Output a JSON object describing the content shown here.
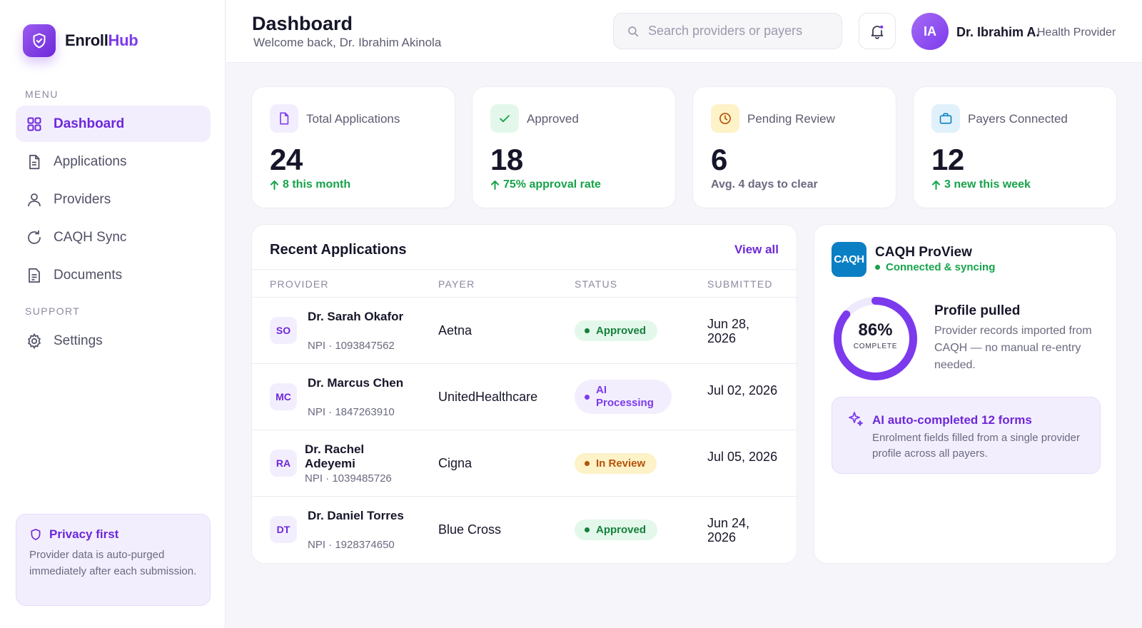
{
  "brand": {
    "name_main": "Enroll",
    "name_accent": "Hub"
  },
  "sidebar": {
    "menu_heading": "MENU",
    "support_heading": "SUPPORT",
    "items": [
      {
        "label": "Dashboard",
        "icon": "grid-icon",
        "active": true
      },
      {
        "label": "Applications",
        "icon": "document-icon"
      },
      {
        "label": "Providers",
        "icon": "user-icon"
      },
      {
        "label": "CAQH Sync",
        "icon": "sync-icon"
      },
      {
        "label": "Documents",
        "icon": "file-text-icon"
      },
      {
        "label": "Settings",
        "icon": "gear-icon"
      }
    ],
    "privacy": {
      "title": "Privacy first",
      "text": "Provider data is auto-purged immediately after each submission."
    }
  },
  "header": {
    "title": "Dashboard",
    "subtitle": "Welcome back, Dr. Ibrahim Akinola",
    "search_placeholder": "Search providers or payers",
    "user": {
      "initials": "IA",
      "name": "Dr. Ibrahim A.",
      "role": "Health Provider"
    }
  },
  "stats": [
    {
      "label": "Total Applications",
      "value": "24",
      "note": "8 this month",
      "trend": "up",
      "icon": "document-icon"
    },
    {
      "label": "Approved",
      "value": "18",
      "note": "75% approval rate",
      "trend": "up",
      "icon": "check-icon"
    },
    {
      "label": "Pending Review",
      "value": "6",
      "note": "Avg. 4 days to clear",
      "trend": "none",
      "icon": "clock-icon"
    },
    {
      "label": "Payers Connected",
      "value": "12",
      "note": "3 new this week",
      "trend": "up",
      "icon": "briefcase-icon"
    }
  ],
  "recent": {
    "title": "Recent Applications",
    "view_all": "View all",
    "columns": [
      "PROVIDER",
      "PAYER",
      "STATUS",
      "SUBMITTED"
    ],
    "rows": [
      {
        "initials": "SO",
        "name": "Dr. Sarah Okafor",
        "npi": "NPI · 1093847562",
        "payer": "Aetna",
        "status": "Approved",
        "status_kind": "approved",
        "submitted": "Jun 28, 2026"
      },
      {
        "initials": "MC",
        "name": "Dr. Marcus Chen",
        "npi": "NPI · 1847263910",
        "payer": "UnitedHealthcare",
        "status": "AI Processing",
        "status_kind": "processing",
        "submitted": "Jul 02, 2026"
      },
      {
        "initials": "RA",
        "name": "Dr. Rachel Adeyemi",
        "npi": "NPI · 1039485726",
        "payer": "Cigna",
        "status": "In Review",
        "status_kind": "review",
        "submitted": "Jul 05, 2026"
      },
      {
        "initials": "DT",
        "name": "Dr. Daniel Torres",
        "npi": "NPI · 1928374650",
        "payer": "Blue Cross",
        "status": "Approved",
        "status_kind": "approved",
        "submitted": "Jun 24, 2026"
      }
    ]
  },
  "caqh": {
    "logo_text": "CAQH",
    "title": "CAQH ProView",
    "status": "Connected & syncing",
    "progress_value": "86%",
    "progress_fraction": 0.86,
    "progress_label": "COMPLETE",
    "profile_title": "Profile pulled",
    "profile_text": "Provider records imported from CAQH — no manual re-entry needed.",
    "ai_title": "AI auto-completed 12 forms",
    "ai_text": "Enrolment fields filled from a single provider profile across all payers."
  },
  "colors": {
    "accent": "#7c3aed",
    "success": "#16a34a",
    "warning": "#b45309",
    "caqh_blue": "#0b7fc4"
  }
}
